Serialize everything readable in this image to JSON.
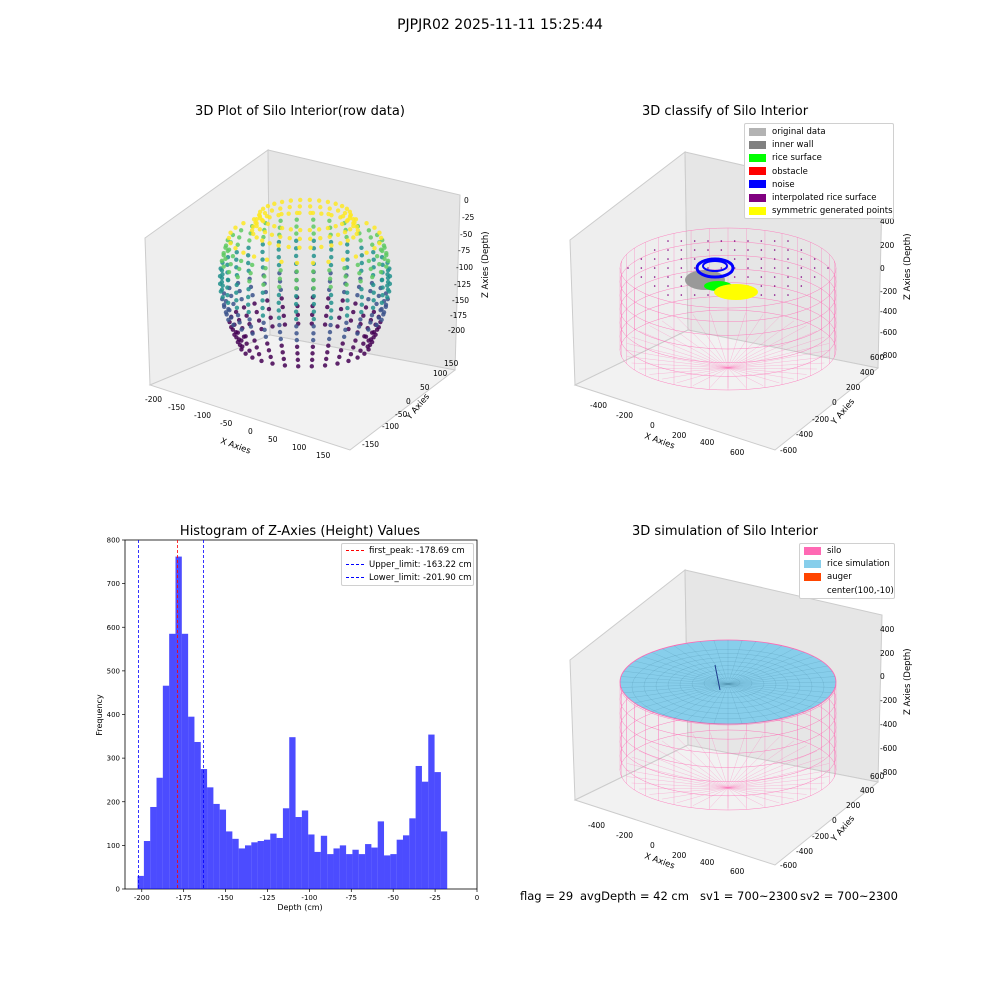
{
  "suptitle": "PJPJR02 2025-11-11 15:25:44",
  "footer": {
    "flag": "flag = 29",
    "avg_depth": "avgDepth = 42 cm",
    "sv1": "sv1 = 700~2300",
    "sv2": "sv2 = 700~2300"
  },
  "plot1": {
    "title": "3D Plot of Silo Interior(row data)",
    "xlabel": "X Axies",
    "ylabel": "Y Axies",
    "zlabel": "Z Axies (Depth)",
    "xticks": [
      "-200",
      "-150",
      "-100",
      "-50",
      "0",
      "50",
      "100",
      "150"
    ],
    "yticks": [
      "-150",
      "-100",
      "-50",
      "0",
      "50",
      "100",
      "150"
    ],
    "zticks": [
      "0",
      "-25",
      "-50",
      "-75",
      "-100",
      "-125",
      "-150",
      "-175",
      "-200"
    ]
  },
  "plot2": {
    "title": "3D classify of Silo Interior",
    "xlabel": "X Axies",
    "ylabel": "Y Axies",
    "zlabel": "Z Axies (Depth)",
    "xticks": [
      "-400",
      "-200",
      "0",
      "200",
      "400",
      "600"
    ],
    "yticks": [
      "-600",
      "-400",
      "-200",
      "0",
      "200",
      "400",
      "600"
    ],
    "zticks": [
      "400",
      "200",
      "0",
      "-200",
      "-400",
      "-600",
      "-800"
    ],
    "legend": [
      {
        "label": "original data",
        "color": "#b3b3b3"
      },
      {
        "label": "inner wall",
        "color": "#808080"
      },
      {
        "label": "rice surface",
        "color": "#00ff00"
      },
      {
        "label": "obstacle",
        "color": "#ff0000"
      },
      {
        "label": "noise",
        "color": "#0000ff"
      },
      {
        "label": "interpolated rice surface",
        "color": "#800080"
      },
      {
        "label": "symmetric generated points",
        "color": "#ffff00"
      }
    ]
  },
  "plot4": {
    "title": "3D simulation of Silo Interior",
    "xlabel": "X Axies",
    "ylabel": "Y Axies",
    "zlabel": "Z Axies (Depth)",
    "xticks": [
      "-400",
      "-200",
      "0",
      "200",
      "400",
      "600"
    ],
    "yticks": [
      "-600",
      "-400",
      "-200",
      "0",
      "200",
      "400",
      "600"
    ],
    "zticks": [
      "400",
      "200",
      "0",
      "-200",
      "-400",
      "-600",
      "-800"
    ],
    "legend": [
      {
        "label": "silo",
        "color": "#ff69b4"
      },
      {
        "label": "rice simulation",
        "color": "#87ceeb"
      },
      {
        "label": "auger",
        "color": "#ff4500"
      },
      {
        "label": "center(100,-10)",
        "color": "#ffffff"
      }
    ]
  },
  "chart_data": {
    "type": "bar",
    "title": "Histogram of Z-Axies (Height) Values",
    "xlabel": "Depth (cm)",
    "ylabel": "Frequency",
    "xlim": [
      -210,
      0
    ],
    "ylim": [
      0,
      800
    ],
    "xticks": [
      "-200",
      "-175",
      "-150",
      "-125",
      "-100",
      "-75",
      "-50",
      "-25",
      "0"
    ],
    "yticks": [
      "0",
      "100",
      "200",
      "300",
      "400",
      "500",
      "600",
      "700",
      "800"
    ],
    "bin_start": -202.5,
    "bin_width": 3.77,
    "bar_color": "#0000ff",
    "values": [
      30,
      110,
      188,
      255,
      466,
      585,
      762,
      585,
      395,
      337,
      275,
      233,
      195,
      182,
      132,
      115,
      93,
      100,
      107,
      110,
      113,
      127,
      117,
      185,
      348,
      165,
      180,
      125,
      85,
      122,
      80,
      93,
      100,
      80,
      90,
      80,
      103,
      95,
      155,
      77,
      80,
      113,
      123,
      162,
      282,
      246,
      354,
      268,
      132
    ],
    "lines": [
      {
        "label": "first_peak: -178.69 cm",
        "x": -178.69,
        "color": "#ff0000"
      },
      {
        "label": "Upper_limit: -163.22 cm",
        "x": -163.22,
        "color": "#0000ff"
      },
      {
        "label": "Lower_limit: -201.90 cm",
        "x": -201.9,
        "color": "#0000ff"
      }
    ]
  }
}
